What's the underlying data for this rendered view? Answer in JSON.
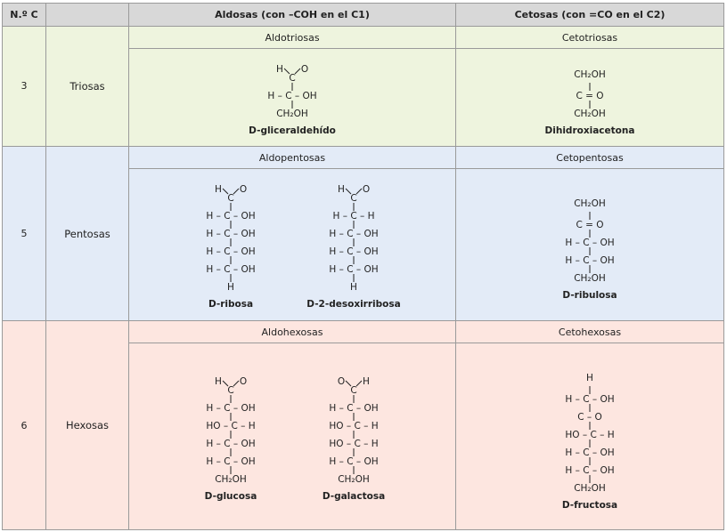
{
  "headers": {
    "nc": "N.º C",
    "name": "",
    "aldosas": "Aldosas (con –COH en el C1)",
    "cetosas": "Cetosas (con =CO en el C2)"
  },
  "rows": [
    {
      "nc": "3",
      "name": "Triosas",
      "aldo_sub": "Aldotriosas",
      "ceto_sub": "Cetotriosas",
      "aldo_structs": [
        {
          "label": "D-gliceraldehído",
          "top": "H-CHO",
          "lines": [
            "H – C – OH"
          ],
          "bottom": "CH₂OH"
        }
      ],
      "ceto_structs": [
        {
          "label": "Dihidroxiacetona",
          "top": "CH₂OH",
          "lines": [
            "C = O"
          ],
          "bottom": "CH₂OH"
        }
      ]
    },
    {
      "nc": "5",
      "name": "Pentosas",
      "aldo_sub": "Aldopentosas",
      "ceto_sub": "Cetopentosas",
      "aldo_structs": [
        {
          "label": "D-ribosa",
          "top": "H-CHO",
          "lines": [
            "H – C – OH",
            "H – C – OH",
            "H – C – OH",
            "H – C – OH"
          ],
          "bottom": "H"
        },
        {
          "label": "D-2-desoxirribosa",
          "top": "H-CHO",
          "lines": [
            "H – C – H",
            "H – C – OH",
            "H – C – OH",
            "H – C – OH"
          ],
          "bottom": "H"
        }
      ],
      "ceto_structs": [
        {
          "label": "D-ribulosa",
          "top": "CH₂OH",
          "lines": [
            "C = O",
            "H – C – OH",
            "H – C – OH"
          ],
          "bottom": "CH₂OH"
        }
      ]
    },
    {
      "nc": "6",
      "name": "Hexosas",
      "aldo_sub": "Aldohexosas",
      "ceto_sub": "Cetohexosas",
      "aldo_structs": [
        {
          "label": "D-glucosa",
          "top": "H-CHO",
          "lines": [
            "H – C – OH",
            "HO – C – H",
            "H – C – OH",
            "H – C – OH"
          ],
          "bottom": "CH₂OH"
        },
        {
          "label": "D-galactosa",
          "top": "O-CH",
          "lines": [
            "H – C – OH",
            "HO – C – H",
            "HO – C – H",
            "H – C – OH"
          ],
          "bottom": "CH₂OH"
        }
      ],
      "ceto_structs": [
        {
          "label": "D-fructosa",
          "top": "H",
          "lines": [
            "H – C – OH",
            "C – O",
            "HO – C – H",
            "H – C – OH",
            "H – C – OH"
          ],
          "bottom": "CH₂OH"
        }
      ]
    }
  ]
}
